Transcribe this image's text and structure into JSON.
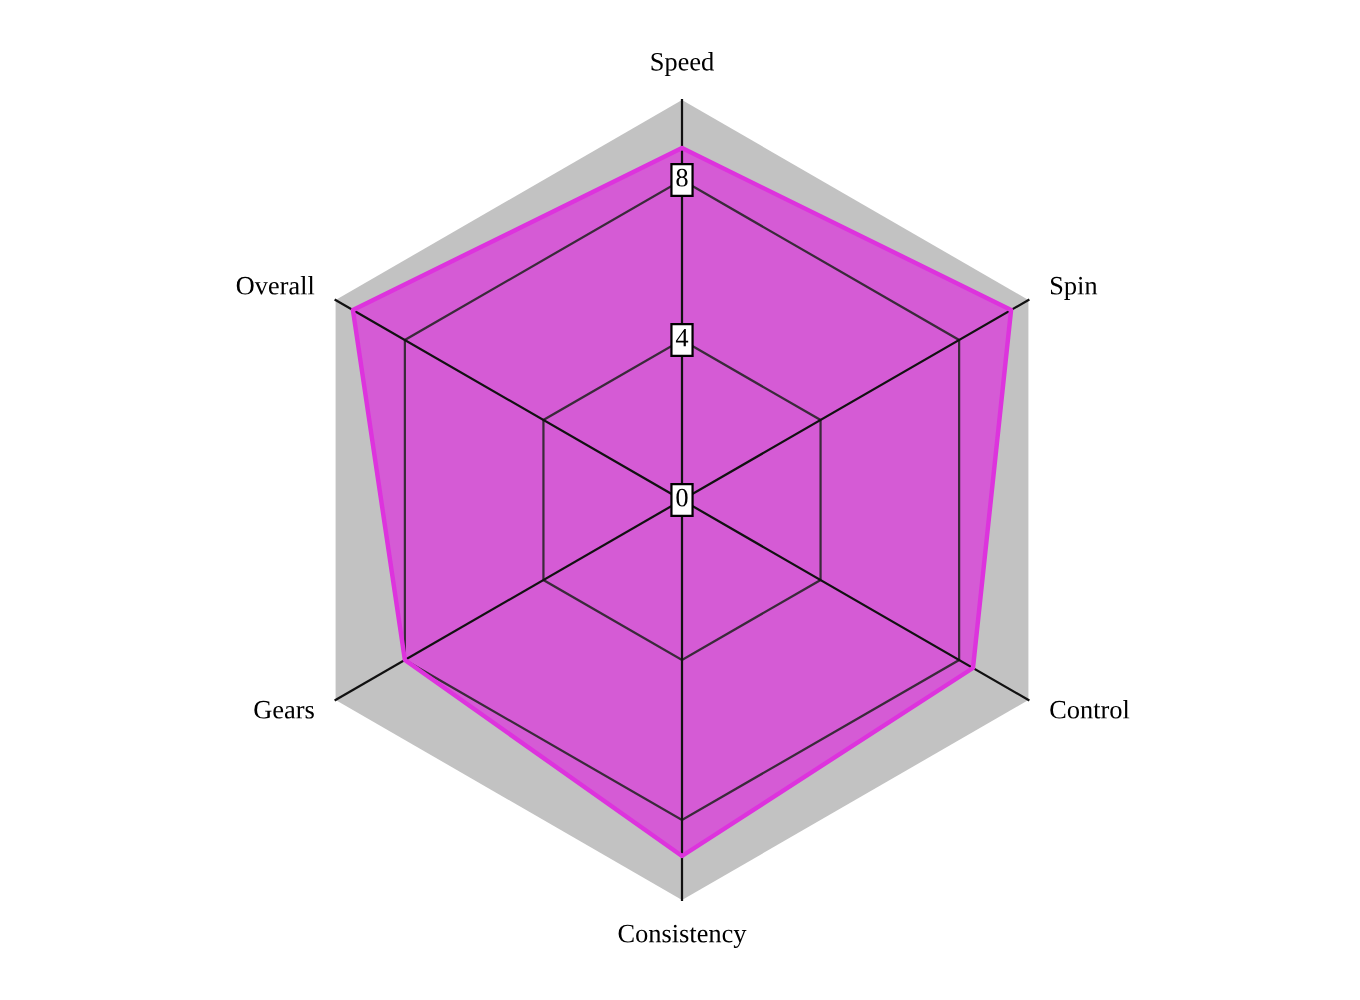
{
  "chart_data": {
    "type": "radar",
    "categories": [
      "Speed",
      "Spin",
      "Control",
      "Consistency",
      "Gears",
      "Overall"
    ],
    "series": [
      {
        "color": "#dd33dd",
        "values": [
          8.8,
          9.5,
          8.4,
          8.9,
          8.0,
          9.5
        ]
      }
    ],
    "ylim": [
      0,
      10
    ],
    "yticks": [
      0,
      4,
      8
    ],
    "grid": true
  }
}
